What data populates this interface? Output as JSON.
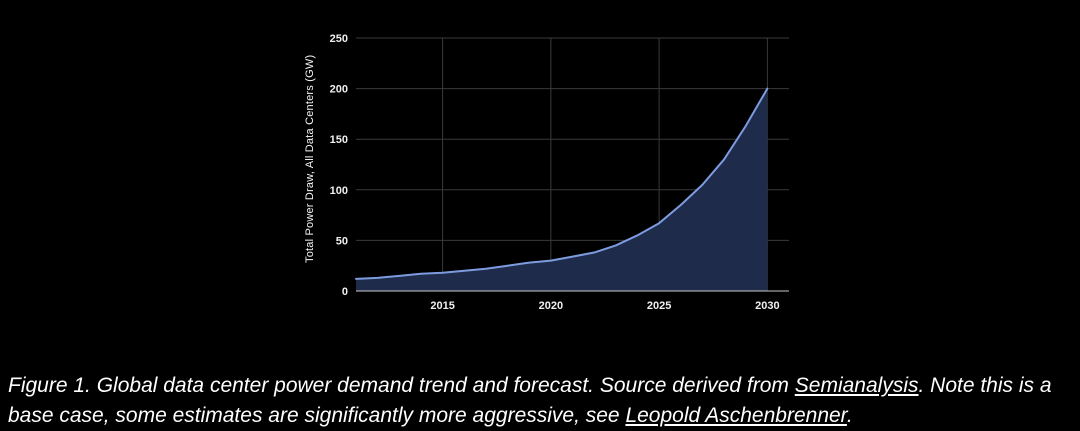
{
  "page": {
    "background": "#000000"
  },
  "chart_data": {
    "type": "area",
    "title": "",
    "xlabel": "",
    "ylabel": "Total Power Draw, All Data Centers (GW)",
    "x": [
      2011,
      2012,
      2013,
      2014,
      2015,
      2016,
      2017,
      2018,
      2019,
      2020,
      2021,
      2022,
      2023,
      2024,
      2025,
      2026,
      2027,
      2028,
      2029,
      2030
    ],
    "values": [
      12,
      13,
      15,
      17,
      18,
      20,
      22,
      25,
      28,
      30,
      34,
      38,
      45,
      55,
      67,
      85,
      105,
      130,
      163,
      200
    ],
    "xticks": [
      2015,
      2020,
      2025,
      2030
    ],
    "yticks": [
      0,
      50,
      100,
      150,
      200,
      250
    ],
    "xlim": [
      2011,
      2031
    ],
    "ylim": [
      0,
      250
    ],
    "grid": true,
    "legend_position": "none",
    "colors": {
      "line": "#7d9ce0",
      "fill": "#1f2b4a",
      "grid": "#3a3a3a",
      "axis": "#c8c8c8",
      "text": "#f0f0f0"
    }
  },
  "caption": {
    "segments": [
      {
        "text": "Figure 1. Global data center power demand trend and forecast. Source derived from ",
        "link": false
      },
      {
        "text": "Semianalysis",
        "link": true
      },
      {
        "text": ". Note this is a base case, some estimates are significantly more aggressive, see ",
        "link": false
      },
      {
        "text": "Leopold Aschenbrenner",
        "link": true
      },
      {
        "text": ".",
        "link": false
      }
    ]
  }
}
